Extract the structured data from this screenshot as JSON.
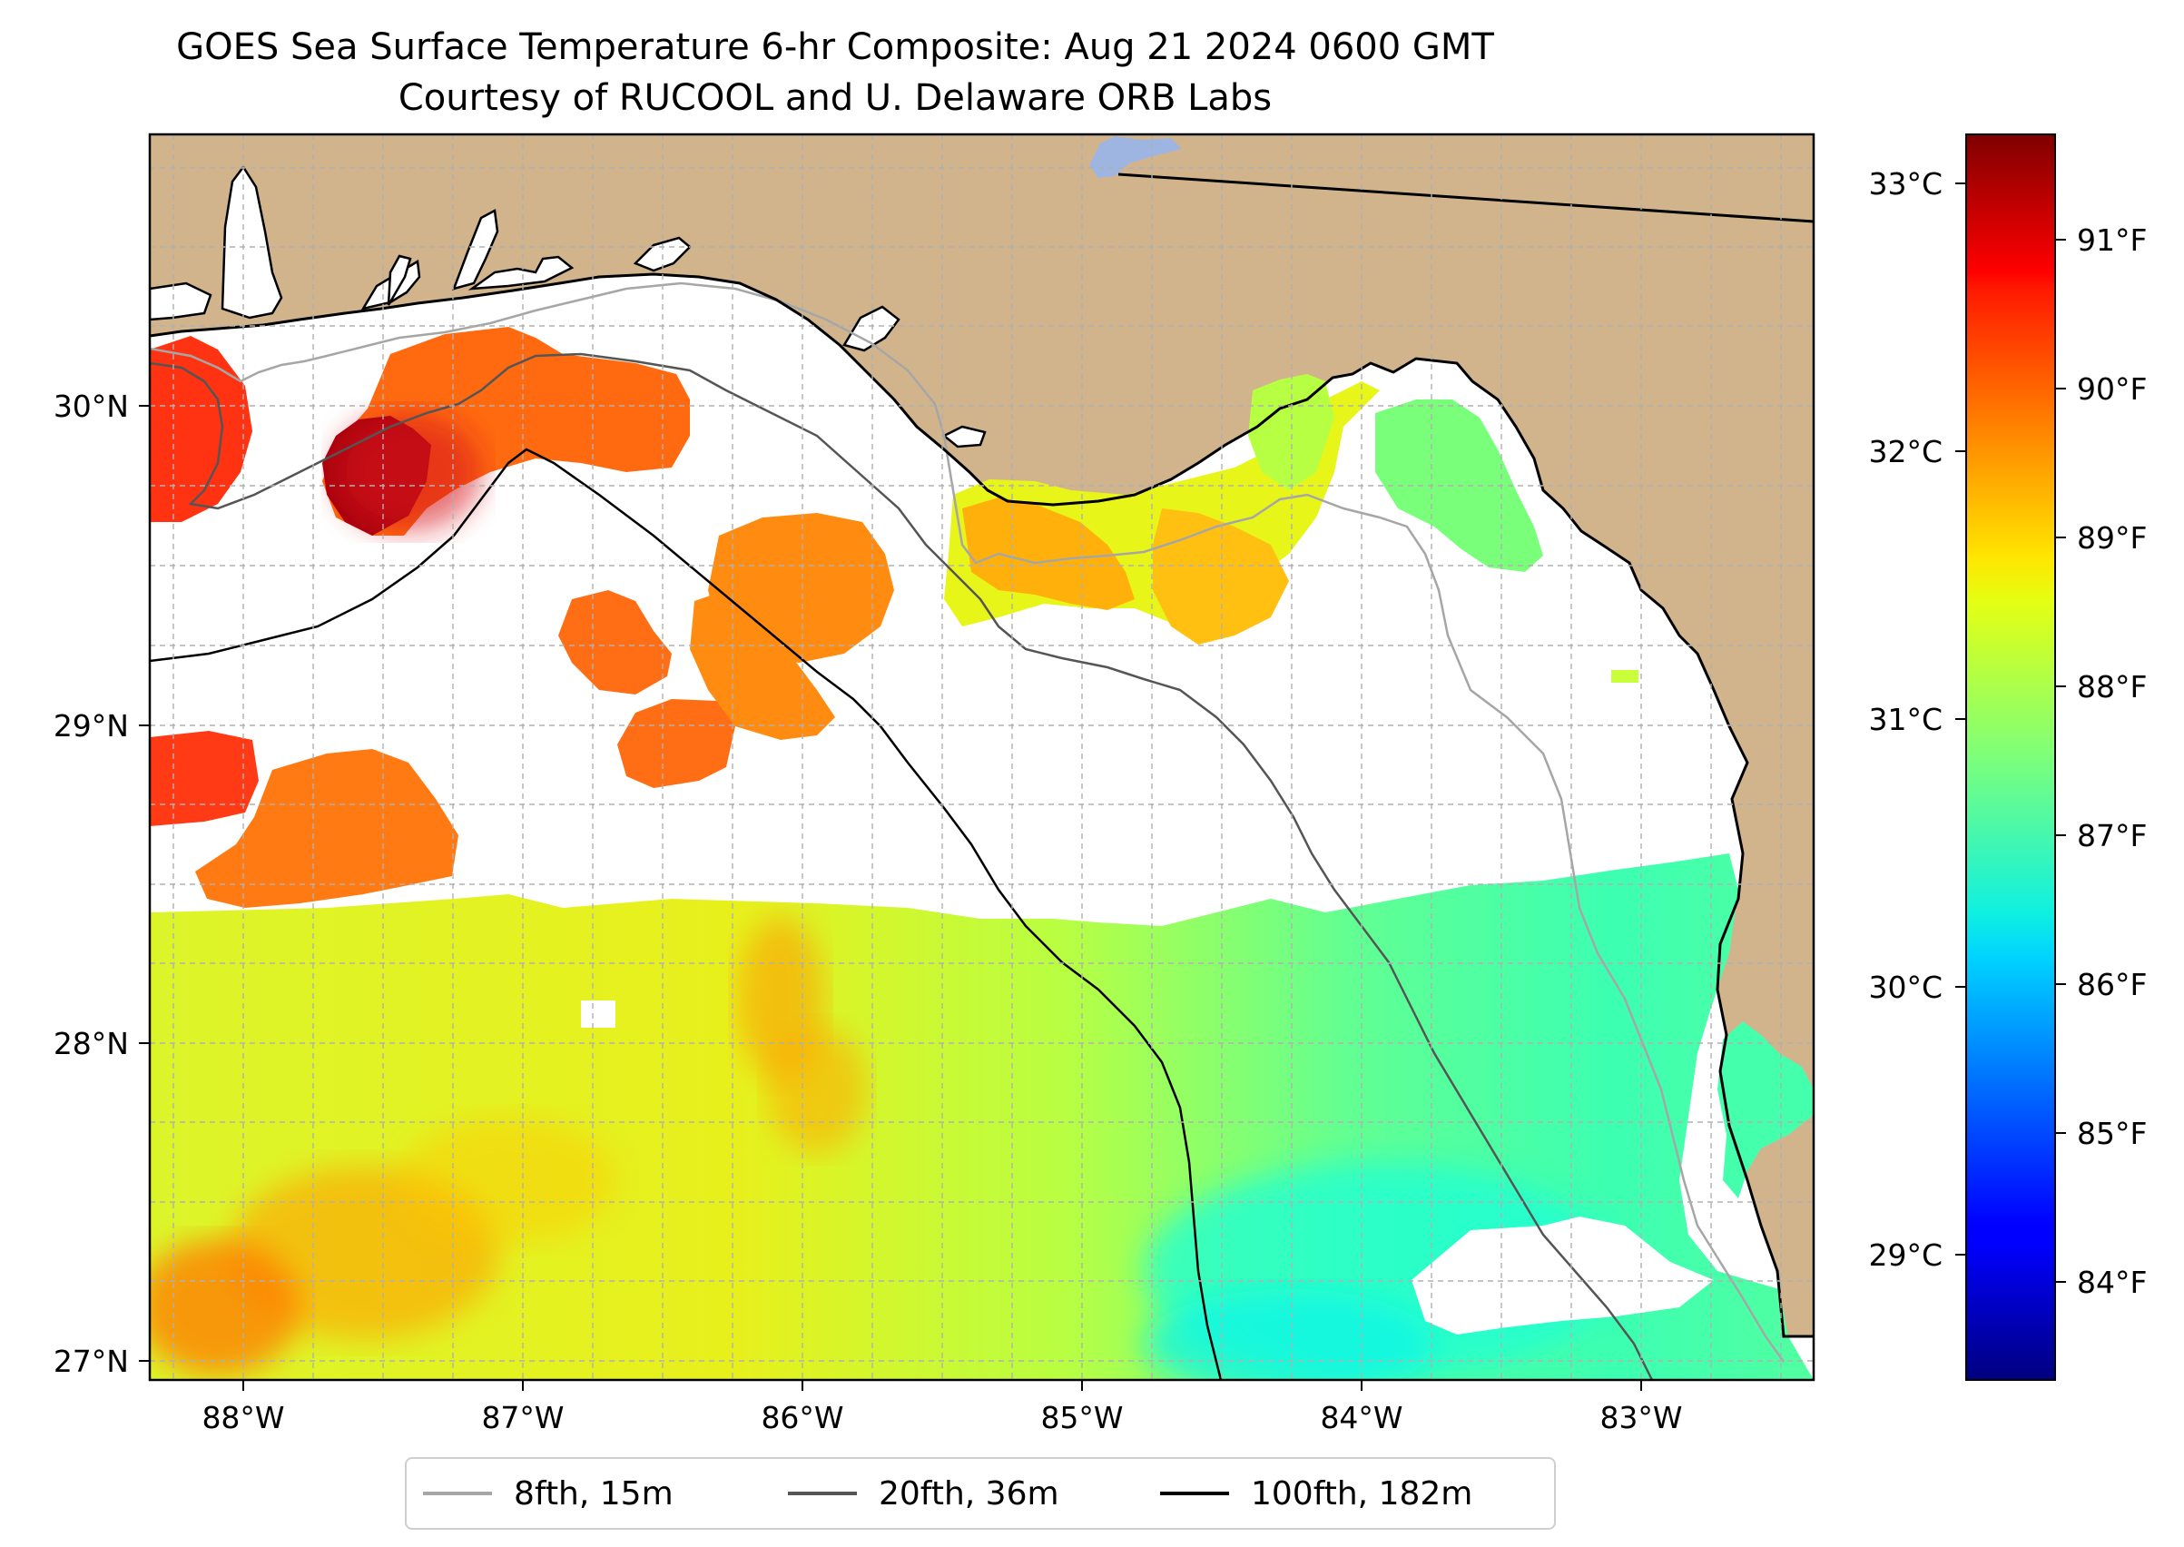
{
  "title": "GOES Sea Surface Temperature 6-hr Composite: Aug 21 2024 0600 GMT",
  "subtitle": "Courtesy of RUCOOL and U. Delaware ORB Labs",
  "map": {
    "lon_labels": [
      "88°W",
      "87°W",
      "86°W",
      "85°W",
      "84°W",
      "83°W"
    ],
    "lat_labels": [
      "30°N",
      "29°N",
      "28°N",
      "27°N"
    ],
    "land_color": "#d2b48c",
    "water_color": "#ffffff",
    "lake_color": "#9db5e0"
  },
  "colorbar": {
    "celsius_labels": [
      "33°C",
      "32°C",
      "31°C",
      "30°C",
      "29°C"
    ],
    "fahrenheit_labels": [
      "91°F",
      "90°F",
      "89°F",
      "88°F",
      "87°F",
      "86°F",
      "85°F",
      "84°F"
    ],
    "celsius_values": [
      33,
      32,
      31,
      30,
      29
    ],
    "fahrenheit_values": [
      91,
      90,
      89,
      88,
      87,
      86,
      85,
      84
    ],
    "colormap": "jet"
  },
  "legend": {
    "items": [
      {
        "label": "8fth, 15m",
        "color": "#a6a6a6"
      },
      {
        "label": "20fth, 36m",
        "color": "#555555"
      },
      {
        "label": "100fth, 182m",
        "color": "#000000"
      }
    ]
  }
}
